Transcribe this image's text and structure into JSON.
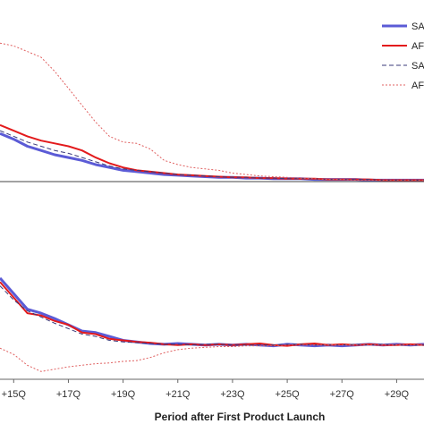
{
  "chart_data": {
    "type": "line",
    "xlabel": "Period after First Product Launch",
    "x_ticks": [
      "+15Q",
      "+17Q",
      "+19Q",
      "+21Q",
      "+23Q",
      "+25Q",
      "+27Q",
      "+29Q"
    ],
    "x_range": [
      14.5,
      30
    ],
    "legend": {
      "position": "top-right",
      "entries": [
        {
          "label": "SA",
          "color": "#5b5bd6",
          "style": "solid-thick"
        },
        {
          "label": "AF",
          "color": "#e31a1c",
          "style": "solid"
        },
        {
          "label": "SA",
          "color": "#3a3a7a",
          "style": "dashed"
        },
        {
          "label": "AF",
          "color": "#e06060",
          "style": "dotted"
        }
      ]
    },
    "panels": [
      {
        "name": "upper",
        "ylim": [
          0,
          1
        ],
        "baseline": 0,
        "x": [
          14.5,
          15,
          15.5,
          16,
          16.5,
          17,
          17.5,
          18,
          18.5,
          19,
          19.5,
          20,
          20.5,
          21,
          21.5,
          22,
          22.5,
          23,
          23.5,
          24,
          24.5,
          25,
          25.5,
          26,
          26.5,
          27,
          27.5,
          28,
          28.5,
          29,
          29.5,
          30
        ],
        "series": [
          {
            "values": [
              0.34,
              0.3,
              0.25,
              0.22,
              0.19,
              0.17,
              0.15,
              0.12,
              0.1,
              0.08,
              0.07,
              0.06,
              0.05,
              0.045,
              0.04,
              0.035,
              0.03,
              0.03,
              0.025,
              0.025,
              0.02,
              0.02,
              0.02,
              0.015,
              0.015,
              0.015,
              0.015,
              0.01,
              0.01,
              0.01,
              0.01,
              0.01
            ],
            "color": "#5b5bd6",
            "dash": "",
            "width": 3
          },
          {
            "values": [
              0.4,
              0.36,
              0.32,
              0.29,
              0.27,
              0.25,
              0.22,
              0.17,
              0.13,
              0.1,
              0.08,
              0.07,
              0.06,
              0.05,
              0.045,
              0.04,
              0.035,
              0.03,
              0.03,
              0.025,
              0.025,
              0.02,
              0.02,
              0.02,
              0.015,
              0.015,
              0.015,
              0.015,
              0.01,
              0.01,
              0.01,
              0.01
            ],
            "color": "#e31a1c",
            "dash": "",
            "width": 2
          },
          {
            "values": [
              0.36,
              0.32,
              0.28,
              0.25,
              0.22,
              0.2,
              0.17,
              0.14,
              0.11,
              0.09,
              0.08,
              0.07,
              0.06,
              0.05,
              0.045,
              0.04,
              0.035,
              0.03,
              0.03,
              0.025,
              0.025,
              0.02,
              0.02,
              0.02,
              0.015,
              0.015,
              0.015,
              0.015,
              0.01,
              0.01,
              0.01,
              0.01
            ],
            "color": "#3a3a7a",
            "dash": "5,3",
            "width": 1
          },
          {
            "values": [
              0.98,
              0.96,
              0.92,
              0.88,
              0.78,
              0.66,
              0.54,
              0.42,
              0.32,
              0.28,
              0.27,
              0.23,
              0.15,
              0.12,
              0.1,
              0.09,
              0.08,
              0.06,
              0.05,
              0.04,
              0.035,
              0.03,
              0.025,
              0.02,
              0.015,
              0.015,
              0.01,
              0.01,
              0.01,
              0.01,
              0.01,
              0.01
            ],
            "color": "#e06060",
            "dash": "2,2",
            "width": 1
          }
        ]
      },
      {
        "name": "lower",
        "ylim": [
          -1,
          1
        ],
        "x": [
          14.5,
          15,
          15.5,
          16,
          16.5,
          17,
          17.5,
          18,
          18.5,
          19,
          19.5,
          20,
          20.5,
          21,
          21.5,
          22,
          22.5,
          23,
          23.5,
          24,
          24.5,
          25,
          25.5,
          26,
          26.5,
          27,
          27.5,
          28,
          28.5,
          29,
          29.5,
          30
        ],
        "series": [
          {
            "values": [
              0.3,
              0.1,
              -0.1,
              -0.15,
              -0.22,
              -0.3,
              -0.38,
              -0.4,
              -0.45,
              -0.5,
              -0.52,
              -0.54,
              -0.55,
              -0.54,
              -0.55,
              -0.56,
              -0.55,
              -0.56,
              -0.55,
              -0.56,
              -0.57,
              -0.55,
              -0.56,
              -0.57,
              -0.56,
              -0.57,
              -0.56,
              -0.55,
              -0.56,
              -0.55,
              -0.56,
              -0.55
            ],
            "color": "#5b5bd6",
            "dash": "",
            "width": 3
          },
          {
            "values": [
              0.25,
              0.05,
              -0.15,
              -0.18,
              -0.25,
              -0.3,
              -0.4,
              -0.42,
              -0.48,
              -0.5,
              -0.52,
              -0.53,
              -0.55,
              -0.56,
              -0.55,
              -0.56,
              -0.55,
              -0.56,
              -0.55,
              -0.54,
              -0.56,
              -0.57,
              -0.55,
              -0.54,
              -0.56,
              -0.55,
              -0.56,
              -0.55,
              -0.56,
              -0.56,
              -0.55,
              -0.56
            ],
            "color": "#e31a1c",
            "dash": "",
            "width": 2
          },
          {
            "values": [
              0.2,
              0.02,
              -0.12,
              -0.2,
              -0.28,
              -0.35,
              -0.42,
              -0.45,
              -0.5,
              -0.52,
              -0.53,
              -0.54,
              -0.55,
              -0.55,
              -0.56,
              -0.55,
              -0.55,
              -0.56,
              -0.56,
              -0.56,
              -0.56,
              -0.55,
              -0.55,
              -0.56,
              -0.56,
              -0.56,
              -0.55,
              -0.56,
              -0.55,
              -0.56,
              -0.56,
              -0.56
            ],
            "color": "#3a3a7a",
            "dash": "5,3",
            "width": 1
          },
          {
            "values": [
              -0.6,
              -0.68,
              -0.82,
              -0.9,
              -0.87,
              -0.84,
              -0.82,
              -0.8,
              -0.79,
              -0.77,
              -0.76,
              -0.72,
              -0.66,
              -0.62,
              -0.6,
              -0.59,
              -0.58,
              -0.58,
              -0.57,
              -0.57,
              -0.57,
              -0.56,
              -0.56,
              -0.56,
              -0.56,
              -0.56,
              -0.56,
              -0.56,
              -0.56,
              -0.56,
              -0.56,
              -0.56
            ],
            "color": "#e06060",
            "dash": "2,2",
            "width": 1
          }
        ]
      }
    ]
  }
}
